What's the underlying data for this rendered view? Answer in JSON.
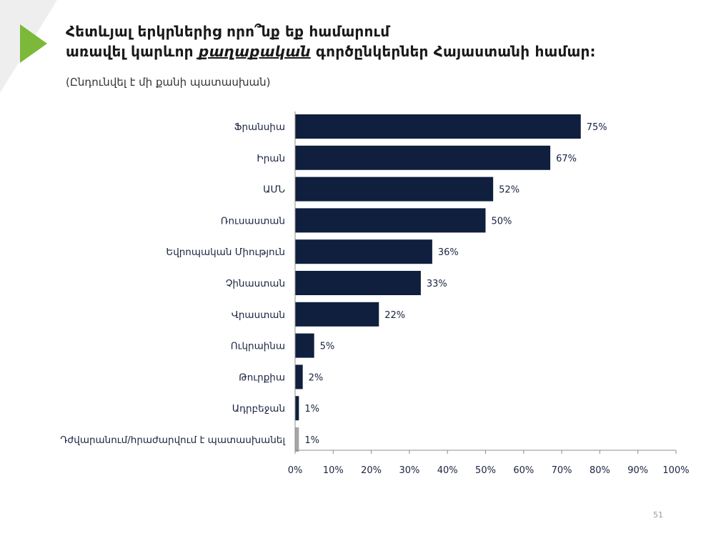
{
  "slide": {
    "title_line1": "Հետևյալ երկրներից որո՞նք եք համարում",
    "title_line2_pre": "առավել կարևոր ",
    "title_line2_em": "քաղաքական",
    "title_line2_post": " գործընկերներ Հայաստանի համար:",
    "subtitle": "(Ընդունվել է մի քանի պատասխան)",
    "page_number": "51",
    "accent_color": "#7cb93a",
    "wedge_color": "#eeeeee"
  },
  "chart_data": {
    "type": "bar",
    "orientation": "horizontal",
    "categories": [
      "Ֆրանսիա",
      "Իրան",
      "ԱՄՆ",
      "Ռուսաստան",
      "Եվրոպական Միություն",
      "Չինաստան",
      "Վրաստան",
      "Ուկրաինա",
      "Թուրքիա",
      "Ադրբեջան",
      "Դժվարանում/հրաժարվում է պատասխանել"
    ],
    "values": [
      75,
      67,
      52,
      50,
      36,
      33,
      22,
      5,
      2,
      1,
      1
    ],
    "value_labels": [
      "75%",
      "67%",
      "52%",
      "50%",
      "36%",
      "33%",
      "22%",
      "5%",
      "2%",
      "1%",
      "1%"
    ],
    "bar_colors": [
      "#0f1f3d",
      "#0f1f3d",
      "#0f1f3d",
      "#0f1f3d",
      "#0f1f3d",
      "#0f1f3d",
      "#0f1f3d",
      "#0f1f3d",
      "#0f1f3d",
      "#0f1f3d",
      "#a6a6a6"
    ],
    "xlim": [
      0,
      100
    ],
    "xticks": [
      "0%",
      "10%",
      "20%",
      "30%",
      "40%",
      "50%",
      "60%",
      "70%",
      "80%",
      "90%",
      "100%"
    ],
    "title": "",
    "xlabel": "",
    "ylabel": "",
    "grid": false,
    "legend": "none"
  }
}
